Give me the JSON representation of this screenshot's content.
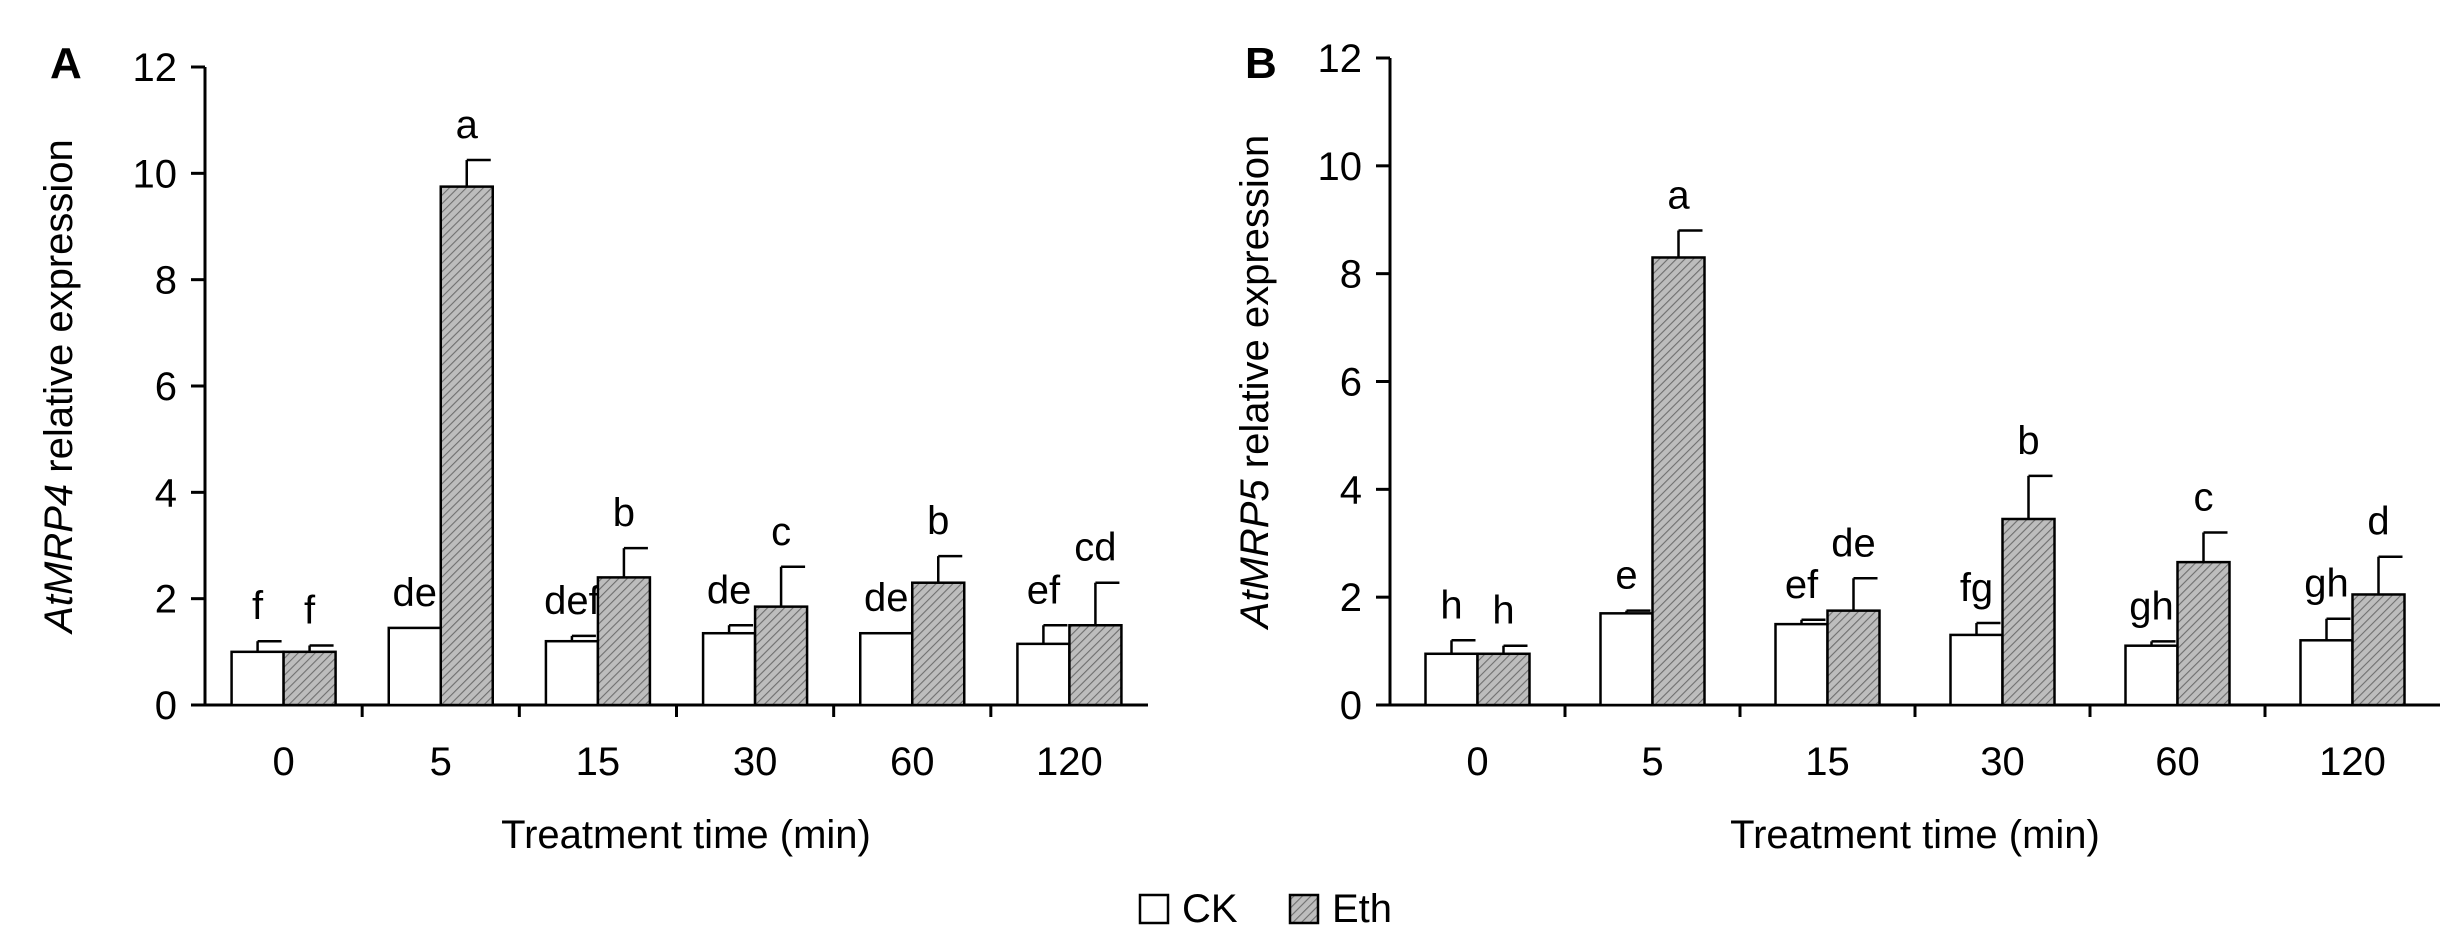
{
  "legend": {
    "items": [
      {
        "label": "CK",
        "pattern": "open"
      },
      {
        "label": "Eth",
        "pattern": "hatched"
      }
    ],
    "placement": "bottom-center"
  },
  "chart_data": [
    {
      "panel": "A",
      "type": "bar",
      "xlabel": "Treatment time (min)",
      "ylabel_italic": "AtMRP4",
      "ylabel_rest": " relative expression",
      "ylim": [
        0,
        12
      ],
      "yticks": [
        0,
        2,
        4,
        6,
        8,
        10,
        12
      ],
      "categories": [
        "0",
        "5",
        "15",
        "30",
        "60",
        "120"
      ],
      "series": [
        {
          "name": "CK",
          "values": [
            1.0,
            1.45,
            1.2,
            1.35,
            1.35,
            1.15
          ],
          "errors": [
            0.2,
            0.0,
            0.1,
            0.15,
            0.0,
            0.35
          ],
          "letters": [
            "f",
            "de",
            "def",
            "de",
            "de",
            "ef"
          ]
        },
        {
          "name": "Eth",
          "values": [
            1.0,
            9.75,
            2.4,
            1.85,
            2.3,
            1.5
          ],
          "errors": [
            0.12,
            0.5,
            0.55,
            0.75,
            0.5,
            0.8
          ],
          "letters": [
            "f",
            "a",
            "b",
            "c",
            "b",
            "cd"
          ]
        }
      ]
    },
    {
      "panel": "B",
      "type": "bar",
      "xlabel": "Treatment time (min)",
      "ylabel_italic": "AtMRP5",
      "ylabel_rest": " relative expression",
      "ylim": [
        0,
        12
      ],
      "yticks": [
        0,
        2,
        4,
        6,
        8,
        10,
        12
      ],
      "categories": [
        "0",
        "5",
        "15",
        "30",
        "60",
        "120"
      ],
      "series": [
        {
          "name": "CK",
          "values": [
            0.95,
            1.7,
            1.5,
            1.3,
            1.1,
            1.2
          ],
          "errors": [
            0.25,
            0.05,
            0.08,
            0.22,
            0.08,
            0.4
          ],
          "letters": [
            "h",
            "e",
            "ef",
            "fg",
            "gh",
            "gh"
          ]
        },
        {
          "name": "Eth",
          "values": [
            0.95,
            8.3,
            1.75,
            3.45,
            2.65,
            2.05
          ],
          "errors": [
            0.15,
            0.5,
            0.6,
            0.8,
            0.55,
            0.7
          ],
          "letters": [
            "h",
            "a",
            "de",
            "b",
            "c",
            "d"
          ]
        }
      ]
    }
  ]
}
